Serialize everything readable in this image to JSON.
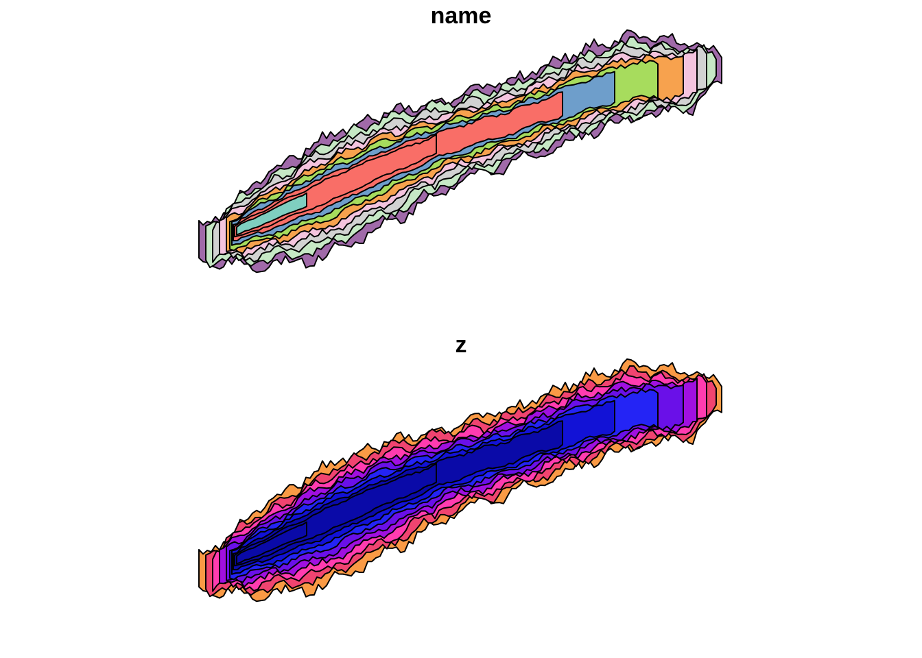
{
  "panels": [
    {
      "title": "name",
      "palette": [
        "#f96e67",
        "#7fcfc0",
        "#6e9ecb",
        "#f7a24e",
        "#a7dc5d",
        "#f4c4de",
        "#d2d2d2",
        "#a06aa9",
        "#c6e8c5",
        "#f0ec9a"
      ]
    },
    {
      "title": "z",
      "palette": [
        "#0a0aa8",
        "#1212d6",
        "#2424f5",
        "#6a10e8",
        "#a010e0",
        "#ff3cb0",
        "#f04470",
        "#fa9a45",
        "#f6c44a",
        "#ffff40"
      ]
    }
  ]
}
